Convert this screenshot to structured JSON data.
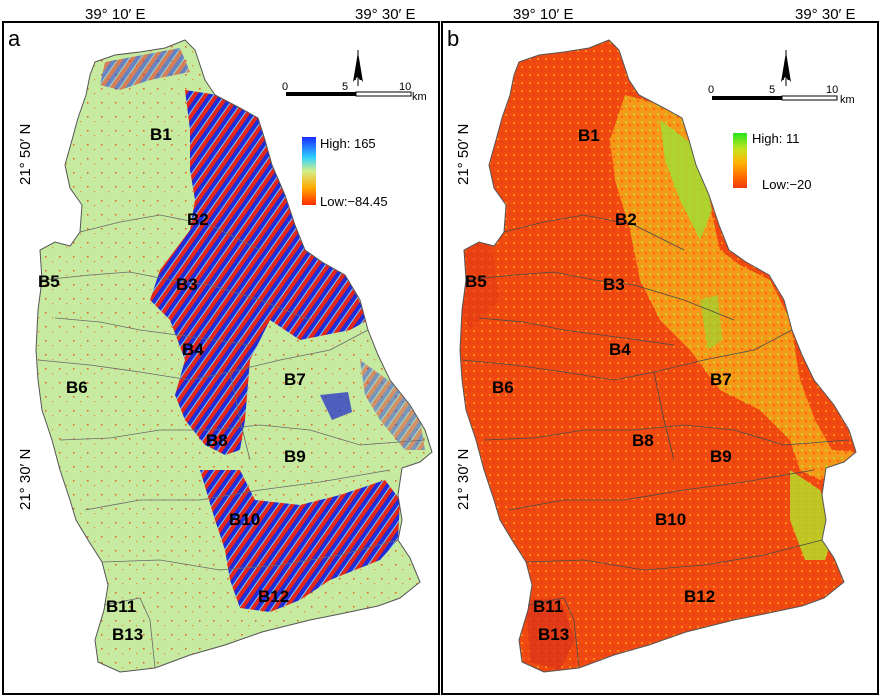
{
  "panels": [
    {
      "letter": "a",
      "lon_left": "39° 10′ E",
      "lon_right": "39° 30′ E",
      "lat_top": "21° 50′ N",
      "lat_bottom": "21° 30′ N",
      "legend": {
        "high": "High: 165",
        "low": "Low:−84.45",
        "colors": [
          "#1a2bff",
          "#2fd0ff",
          "#d2f08a",
          "#ffa800",
          "#ff2a00"
        ]
      },
      "scale": {
        "ticks": [
          "0",
          "5",
          "10"
        ],
        "unit": "km",
        "north": "N"
      },
      "basins": [
        "B1",
        "B2",
        "B3",
        "B4",
        "B5",
        "B6",
        "B7",
        "B8",
        "B9",
        "B10",
        "B11",
        "B12",
        "B13"
      ]
    },
    {
      "letter": "b",
      "lon_left": "39° 10′ E",
      "lon_right": "39° 30′ E",
      "lat_top": "21° 50′ N",
      "lat_bottom": "21° 30′ N",
      "legend": {
        "high": "High: 11",
        "low": "Low:−20",
        "colors": [
          "#27e51e",
          "#c8e420",
          "#ffb000",
          "#ff6a00",
          "#f23a10"
        ]
      },
      "scale": {
        "ticks": [
          "0",
          "5",
          "10"
        ],
        "unit": "km",
        "north": "N"
      },
      "basins": [
        "B1",
        "B2",
        "B3",
        "B4",
        "B5",
        "B6",
        "B7",
        "B8",
        "B9",
        "B10",
        "B11",
        "B12",
        "B13"
      ]
    }
  ]
}
